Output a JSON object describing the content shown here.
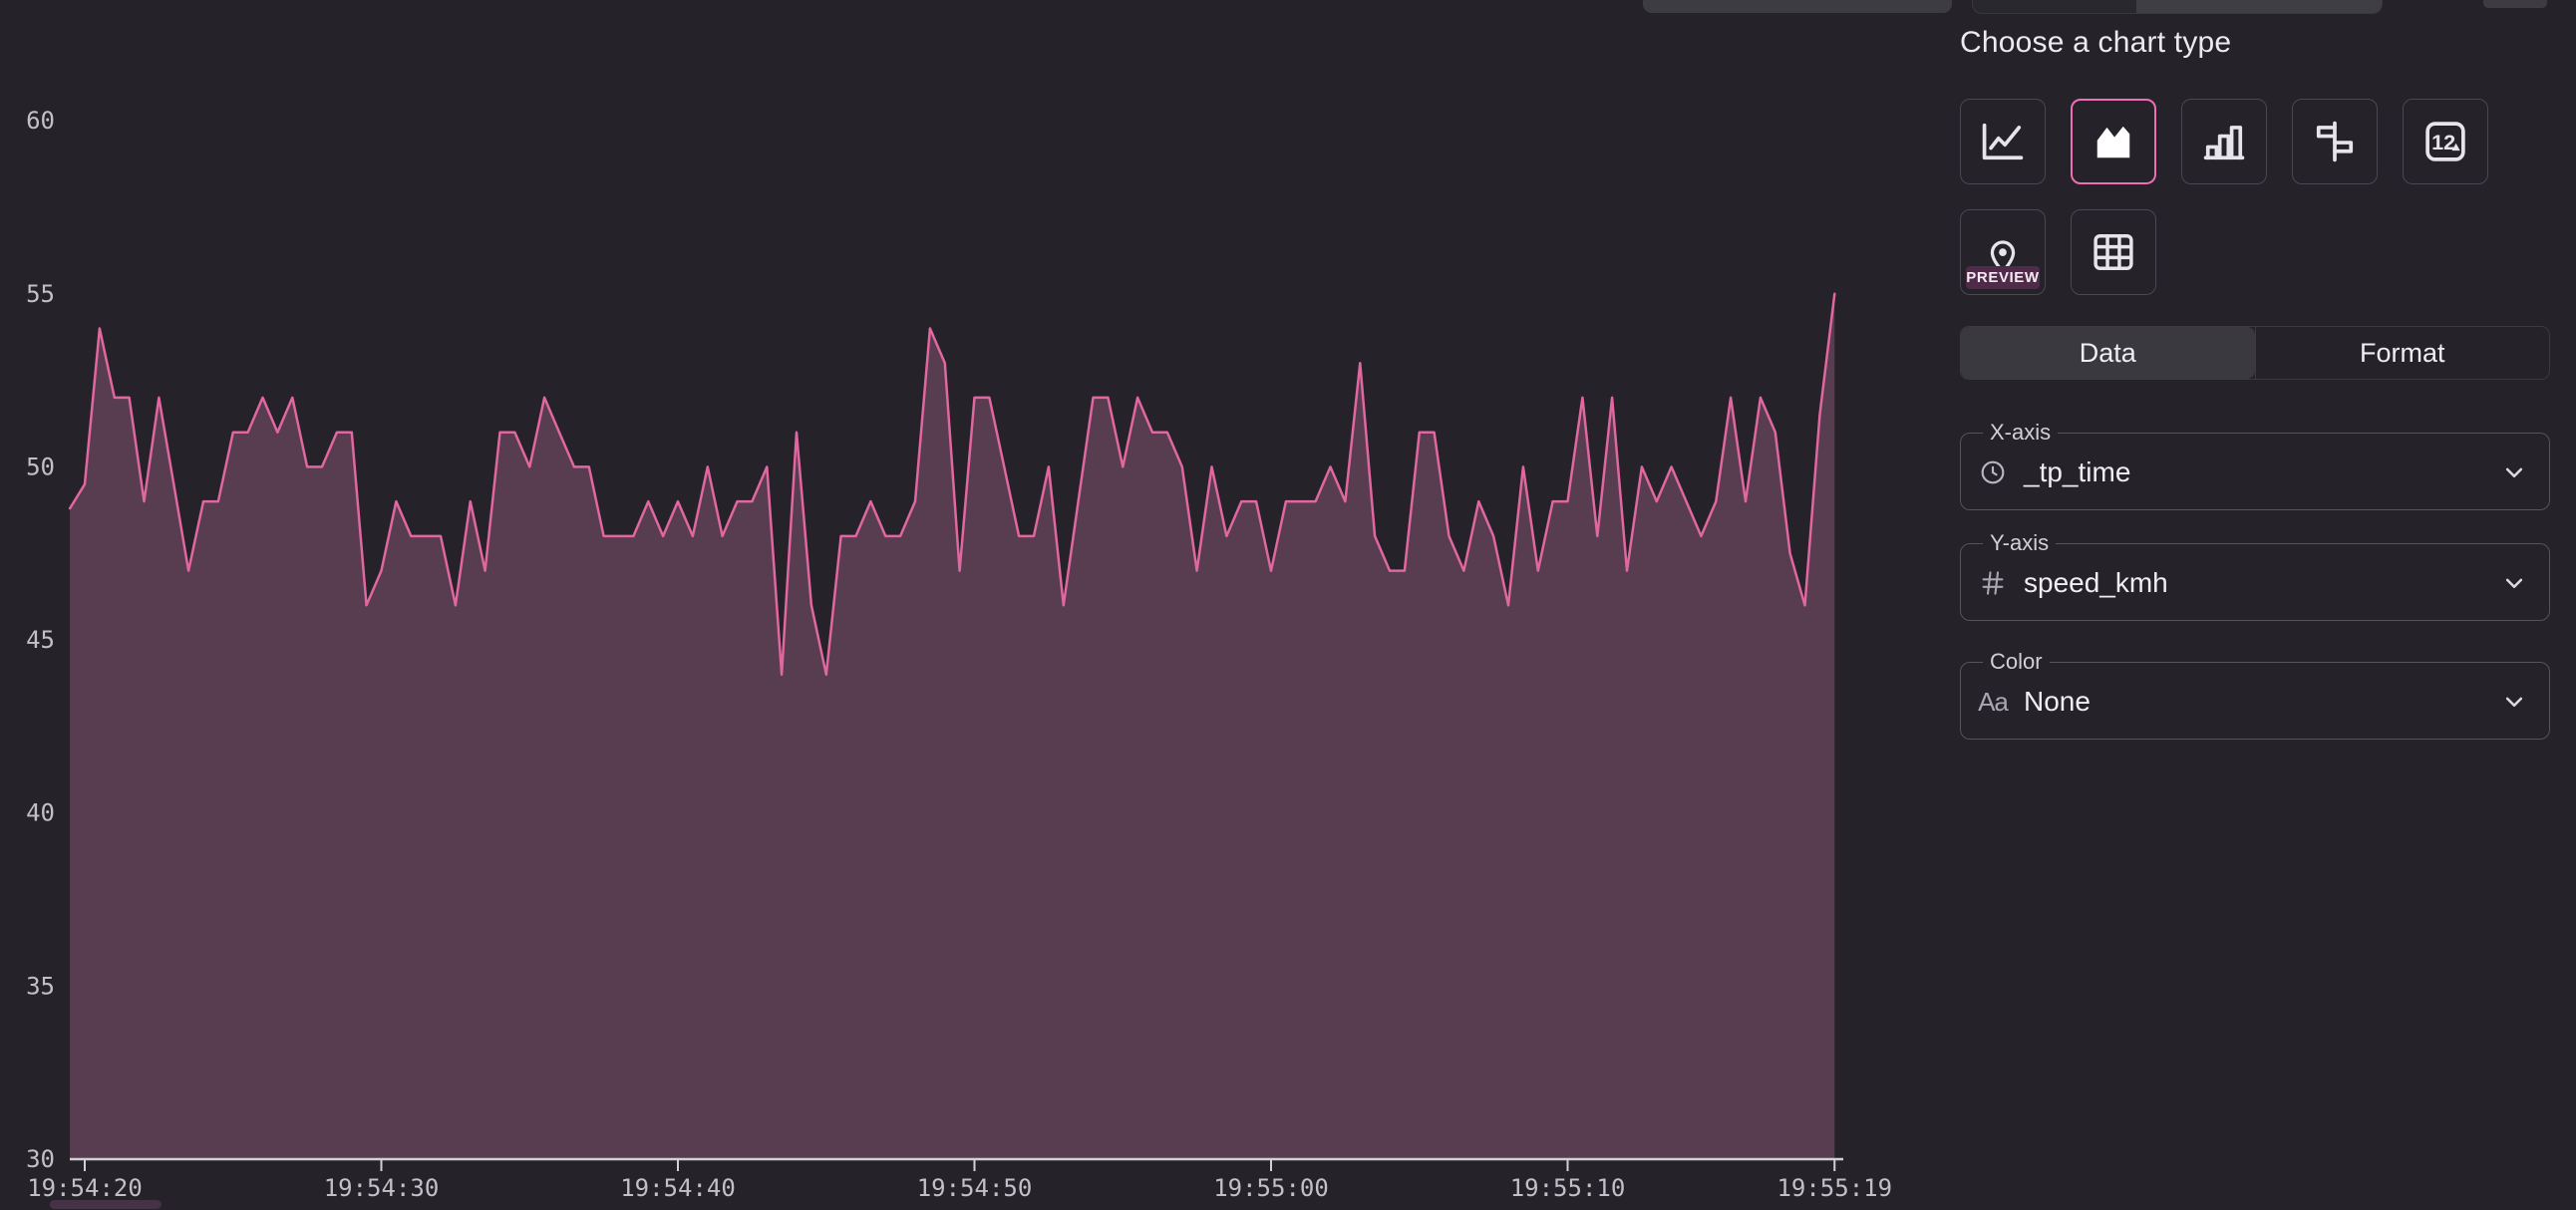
{
  "app": {
    "background": "#252229"
  },
  "chart_data": {
    "type": "area",
    "x_field_label": "_tp_time",
    "y_field_label": "speed_kmh",
    "x_ticks": [
      "19:54:20",
      "19:54:30",
      "19:54:40",
      "19:54:50",
      "19:55:00",
      "19:55:10",
      "19:55:19"
    ],
    "tick_seconds": [
      20,
      30,
      40,
      50,
      60,
      70,
      79
    ],
    "y_ticks": [
      30,
      35,
      40,
      45,
      50,
      55,
      60
    ],
    "ylim": [
      30,
      60
    ],
    "x_start_seconds": 19.5,
    "x_step_seconds": 0.5,
    "values": [
      48.8,
      49.5,
      54,
      52,
      52,
      49,
      52,
      49.5,
      47,
      49,
      49,
      51,
      51,
      52,
      51,
      52,
      50,
      50,
      51,
      51,
      46,
      47,
      49,
      48,
      48,
      48,
      46,
      49,
      47,
      51,
      51,
      50,
      52,
      51,
      50,
      50,
      48,
      48,
      48,
      49,
      48,
      49,
      48,
      50,
      48,
      49,
      49,
      50,
      44,
      51,
      46,
      44,
      48,
      48,
      49,
      48,
      48,
      49,
      54,
      53,
      47,
      52,
      52,
      50,
      48,
      48,
      50,
      46,
      49,
      52,
      52,
      50,
      52,
      51,
      51,
      50,
      47,
      50,
      48,
      49,
      49,
      47,
      49,
      49,
      49,
      50,
      49,
      53,
      48,
      47,
      47,
      51,
      51,
      48,
      47,
      49,
      48,
      46,
      50,
      47,
      49,
      49,
      52,
      48,
      52,
      47,
      50,
      49,
      50,
      49,
      48,
      49,
      52,
      49,
      52,
      51,
      47.5,
      46,
      51.5,
      55
    ],
    "grid": "off",
    "legend": "none",
    "line_color": "#e0679f",
    "fill_color": "#583d51",
    "axis_color": "#d2cfd6",
    "tick_text_color": "#c2bfc7"
  },
  "panel": {
    "title": "Choose a chart type",
    "chart_types": [
      {
        "name": "line",
        "selected": false
      },
      {
        "name": "area",
        "selected": true
      },
      {
        "name": "bar",
        "selected": false
      },
      {
        "name": "bar-horizontal",
        "selected": false
      },
      {
        "name": "number",
        "selected": false
      },
      {
        "name": "map",
        "selected": false,
        "badge": "PREVIEW"
      },
      {
        "name": "table",
        "selected": false
      }
    ],
    "tabs": [
      {
        "label": "Data",
        "active": true
      },
      {
        "label": "Format",
        "active": false
      }
    ],
    "fields": [
      {
        "label": "X-axis",
        "value": "_tp_time",
        "icon": "clock-icon"
      },
      {
        "label": "Y-axis",
        "value": "speed_kmh",
        "icon": "hash-icon"
      },
      {
        "label": "Color",
        "value": "None",
        "icon": "text-aa-icon"
      }
    ]
  }
}
